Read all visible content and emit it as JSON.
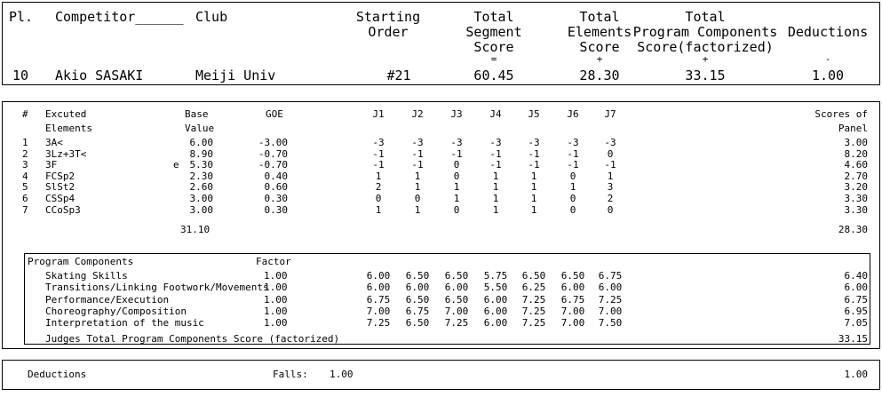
{
  "header": {
    "cols": {
      "pl": "Pl.",
      "competitor": "Competitor______",
      "club": "Club",
      "starting_order": [
        "Starting",
        "Order"
      ],
      "tss": [
        "Total",
        "Segment",
        "Score"
      ],
      "tes": [
        "Total",
        "Elements",
        "Score"
      ],
      "pcs": [
        "Total",
        "Program Components",
        "Score(factorized)"
      ],
      "ded": "Deductions"
    },
    "ops": {
      "tss": "=",
      "tes": "+",
      "pcs": "+",
      "ded": "-"
    },
    "values": {
      "place": "10",
      "name": "Akio SASAKI",
      "club": "Meiji Univ",
      "order": "#21",
      "tss": "60.45",
      "tes": "28.30",
      "pcs": "33.15",
      "ded": "1.00"
    }
  },
  "elements": {
    "headers": {
      "num": "#",
      "executed": [
        "Excuted",
        "Elements"
      ],
      "base": [
        "Base",
        "Value"
      ],
      "goe": "GOE",
      "judges": [
        "J1",
        "J2",
        "J3",
        "J4",
        "J5",
        "J6",
        "J7"
      ],
      "scores": [
        "Scores of",
        "Panel"
      ]
    },
    "rows": [
      {
        "num": "1",
        "name": "3A<",
        "info": "",
        "base": "6.00",
        "goe": "-3.00",
        "j": [
          "-3",
          "-3",
          "-3",
          "-3",
          "-3",
          "-3",
          "-3"
        ],
        "score": "3.00"
      },
      {
        "num": "2",
        "name": "3Lz+3T<",
        "info": "",
        "base": "8.90",
        "goe": "-0.70",
        "j": [
          "-1",
          "-1",
          "-1",
          "-1",
          "-1",
          "-1",
          "0"
        ],
        "score": "8.20"
      },
      {
        "num": "3",
        "name": "3F",
        "info": "e",
        "base": "5.30",
        "goe": "-0.70",
        "j": [
          "-1",
          "-1",
          "0",
          "-1",
          "-1",
          "-1",
          "-1"
        ],
        "score": "4.60"
      },
      {
        "num": "4",
        "name": "FCSp2",
        "info": "",
        "base": "2.30",
        "goe": "0.40",
        "j": [
          "1",
          "1",
          "0",
          "1",
          "1",
          "0",
          "1"
        ],
        "score": "2.70"
      },
      {
        "num": "5",
        "name": "SlSt2",
        "info": "",
        "base": "2.60",
        "goe": "0.60",
        "j": [
          "2",
          "1",
          "1",
          "1",
          "1",
          "1",
          "3"
        ],
        "score": "3.20"
      },
      {
        "num": "6",
        "name": "CSSp4",
        "info": "",
        "base": "3.00",
        "goe": "0.30",
        "j": [
          "0",
          "0",
          "1",
          "1",
          "1",
          "0",
          "2"
        ],
        "score": "3.30"
      },
      {
        "num": "7",
        "name": "CCoSp3",
        "info": "",
        "base": "3.00",
        "goe": "0.30",
        "j": [
          "1",
          "1",
          "0",
          "1",
          "1",
          "0",
          "0"
        ],
        "score": "3.30"
      }
    ],
    "base_total": "31.10",
    "score_total": "28.30"
  },
  "components": {
    "title": "Program Components",
    "factor_label": "Factor",
    "rows": [
      {
        "name": "Skating Skills",
        "factor": "1.00",
        "j": [
          "6.00",
          "6.50",
          "6.50",
          "5.75",
          "6.50",
          "6.50",
          "6.75"
        ],
        "score": "6.40"
      },
      {
        "name": "Transitions/Linking Footwork/Movements",
        "factor": "1.00",
        "j": [
          "6.00",
          "6.00",
          "6.00",
          "5.50",
          "6.25",
          "6.00",
          "6.00"
        ],
        "score": "6.00"
      },
      {
        "name": "Performance/Execution",
        "factor": "1.00",
        "j": [
          "6.75",
          "6.50",
          "6.50",
          "6.00",
          "7.25",
          "6.75",
          "7.25"
        ],
        "score": "6.75"
      },
      {
        "name": "Choreography/Composition",
        "factor": "1.00",
        "j": [
          "7.00",
          "6.75",
          "7.00",
          "6.00",
          "7.25",
          "7.00",
          "7.00"
        ],
        "score": "6.95"
      },
      {
        "name": "Interpretation of the music",
        "factor": "1.00",
        "j": [
          "7.25",
          "6.50",
          "7.25",
          "6.00",
          "7.25",
          "7.00",
          "7.50"
        ],
        "score": "7.05"
      }
    ],
    "total_label": "Judges Total Program Components Score (factorized)",
    "total": "33.15"
  },
  "deductions": {
    "label": "Deductions",
    "falls_label": "Falls:",
    "falls_value": "1.00",
    "total": "1.00"
  }
}
